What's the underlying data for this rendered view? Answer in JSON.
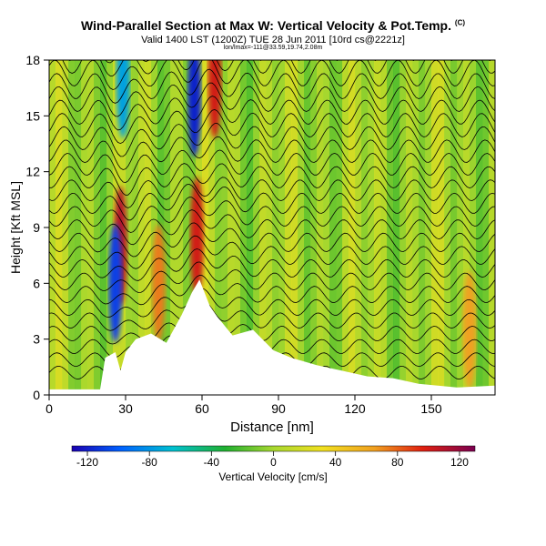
{
  "header": {
    "title": "Wind-Parallel Section at Max W: Vertical Velocity & Pot.Temp.",
    "copyright": "(C)",
    "valid_line": "Valid 1400 LST (1200Z) TUE 28 Jun 2011 [10rd cs@2221z]",
    "info_line": "lon/lmax=-111@33.59,19.74,2.08m"
  },
  "chart_data": {
    "type": "heatmap",
    "xlabel": "Distance [nm]",
    "ylabel": "Height [Kft MSL]",
    "xlim": [
      0,
      175
    ],
    "ylim": [
      0,
      18
    ],
    "x_ticks": [
      0,
      30,
      60,
      90,
      120,
      150
    ],
    "y_ticks": [
      0,
      3,
      6,
      9,
      12,
      15,
      18
    ],
    "grid": false,
    "variable": "Vertical Velocity [cm/s]",
    "overlay": "Potential temperature contours",
    "colorbar": {
      "label": "Vertical Velocity [cm/s]",
      "ticks": [
        -120,
        -80,
        -40,
        0,
        40,
        80,
        120
      ],
      "range": [
        -130,
        130
      ],
      "placement": "bottom"
    },
    "terrain_profile": [
      {
        "x": 0,
        "h": 0.3
      },
      {
        "x": 20,
        "h": 0.3
      },
      {
        "x": 22,
        "h": 2.0
      },
      {
        "x": 26,
        "h": 2.3
      },
      {
        "x": 28,
        "h": 1.3
      },
      {
        "x": 30,
        "h": 2.3
      },
      {
        "x": 34,
        "h": 3.0
      },
      {
        "x": 40,
        "h": 3.3
      },
      {
        "x": 46,
        "h": 2.8
      },
      {
        "x": 52,
        "h": 4.3
      },
      {
        "x": 56,
        "h": 5.5
      },
      {
        "x": 59,
        "h": 6.2
      },
      {
        "x": 63,
        "h": 4.8
      },
      {
        "x": 66,
        "h": 4.2
      },
      {
        "x": 72,
        "h": 3.2
      },
      {
        "x": 80,
        "h": 3.5
      },
      {
        "x": 88,
        "h": 2.4
      },
      {
        "x": 95,
        "h": 2.0
      },
      {
        "x": 105,
        "h": 1.6
      },
      {
        "x": 115,
        "h": 1.3
      },
      {
        "x": 125,
        "h": 1.0
      },
      {
        "x": 135,
        "h": 0.9
      },
      {
        "x": 145,
        "h": 0.6
      },
      {
        "x": 160,
        "h": 0.4
      },
      {
        "x": 175,
        "h": 0.5
      }
    ],
    "features": [
      {
        "x": 28,
        "h": 8.0,
        "w_cms": 110,
        "kind": "updraft"
      },
      {
        "x": 26,
        "h": 6.0,
        "w_cms": -110,
        "kind": "downdraft"
      },
      {
        "x": 43,
        "h": 6.0,
        "w_cms": 70,
        "kind": "updraft"
      },
      {
        "x": 58,
        "h": 8.5,
        "w_cms": 100,
        "kind": "updraft"
      },
      {
        "x": 57,
        "h": 16.0,
        "w_cms": -120,
        "kind": "downdraft"
      },
      {
        "x": 65,
        "h": 17.0,
        "w_cms": 100,
        "kind": "updraft"
      },
      {
        "x": 29,
        "h": 17.0,
        "w_cms": -80,
        "kind": "downdraft"
      },
      {
        "x": 165,
        "h": 3.5,
        "w_cms": 60,
        "kind": "updraft"
      }
    ]
  }
}
